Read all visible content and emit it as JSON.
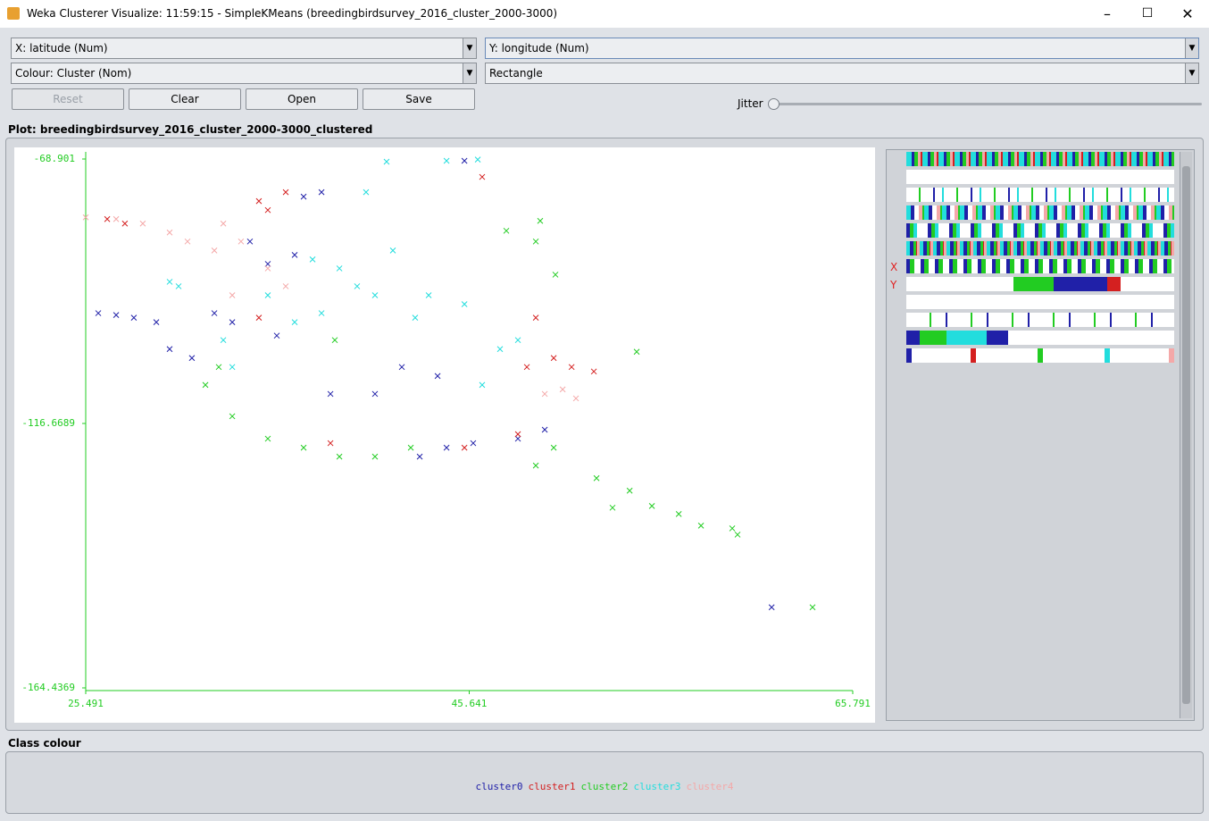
{
  "window": {
    "title": "Weka Clusterer Visualize: 11:59:15 - SimpleKMeans (breedingbirdsurvey_2016_cluster_2000-3000)"
  },
  "controls": {
    "x_select": "X: latitude (Num)",
    "y_select": "Y: longitude (Num)",
    "colour_select": "Colour: Cluster (Nom)",
    "shape_select": "Rectangle",
    "buttons": [
      "Reset",
      "Clear",
      "Open",
      "Save"
    ],
    "jitter": "Jitter"
  },
  "plot_label": "Plot: breedingbirdsurvey_2016_cluster_2000-3000_clustered",
  "attribute_panel": {
    "x_marker": "X",
    "y_marker": "Y"
  },
  "class_colour_label": "Class colour",
  "chart_data": {
    "type": "scatter",
    "xlim": [
      25.491,
      65.791
    ],
    "xticks": [
      25.491,
      45.641,
      65.791
    ],
    "ylim": [
      -164.4369,
      -68.901
    ],
    "yticks": [
      -164.4369,
      -116.6689,
      -68.901
    ],
    "axis_color": "#22cc22",
    "series": [
      {
        "name": "cluster0",
        "color": "#2020a8",
        "x": [
          26.15,
          27.09,
          28.02,
          29.2,
          29.9,
          31.07,
          32.25,
          33.19,
          35.06,
          36.47,
          35.53,
          38.35,
          42.1,
          43.98,
          44.45,
          45.85,
          48.2,
          49.61,
          61.53,
          36.94,
          37.88,
          34.12,
          40.69,
          43.04,
          45.39
        ],
        "values": [
          -96.75,
          -97.08,
          -97.56,
          -98.37,
          -103.23,
          -104.85,
          -96.75,
          -98.37,
          -87.85,
          -86.23,
          -100.8,
          -111.33,
          -106.47,
          -108.09,
          -121.04,
          -120.23,
          -119.42,
          -117.8,
          -149.87,
          -75.7,
          -74.89,
          -83.8,
          -111.33,
          -122.66,
          -69.23
        ]
      },
      {
        "name": "cluster1",
        "color": "#d42020",
        "x": [
          26.62,
          27.55,
          34.59,
          36.0,
          35.06,
          34.59,
          38.35,
          46.32,
          49.14,
          50.08,
          51.02,
          52.19,
          48.67,
          48.2,
          45.39
        ],
        "values": [
          -79.75,
          -80.56,
          -76.51,
          -74.89,
          -78.13,
          -97.56,
          -120.23,
          -72.14,
          -97.56,
          -104.85,
          -106.47,
          -107.28,
          -106.47,
          -118.61,
          -121.04
        ]
      },
      {
        "name": "cluster2",
        "color": "#22cc22",
        "x": [
          31.78,
          33.19,
          35.06,
          36.94,
          38.82,
          40.69,
          42.57,
          50.08,
          49.14,
          52.33,
          54.07,
          53.17,
          55.24,
          56.65,
          57.82,
          59.46,
          59.74,
          63.68,
          54.44,
          50.17,
          49.37,
          47.59,
          49.14,
          38.58,
          32.48
        ],
        "values": [
          -109.71,
          -115.37,
          -119.42,
          -121.04,
          -122.66,
          -122.66,
          -121.04,
          -121.04,
          -124.28,
          -126.55,
          -128.81,
          -131.89,
          -131.57,
          -133.03,
          -135.13,
          -135.62,
          -136.75,
          -149.87,
          -103.72,
          -89.79,
          -80.07,
          -81.86,
          -83.8,
          -101.61,
          -106.47
        ]
      },
      {
        "name": "cluster3",
        "color": "#22dddd",
        "x": [
          41.3,
          44.45,
          46.09,
          37.41,
          38.82,
          39.75,
          40.69,
          37.88,
          36.47,
          35.06,
          32.72,
          33.19,
          41.63,
          42.8,
          46.32,
          47.26,
          48.2,
          30.37,
          40.22,
          29.9,
          43.51,
          45.39
        ],
        "values": [
          -69.39,
          -69.23,
          -69.0,
          -87.04,
          -88.66,
          -91.89,
          -93.51,
          -96.75,
          -98.37,
          -93.51,
          -101.61,
          -106.47,
          -85.42,
          -97.56,
          -109.71,
          -103.23,
          -101.61,
          -91.89,
          -74.89,
          -91.08,
          -93.51,
          -95.13
        ]
      },
      {
        "name": "cluster4",
        "color": "#f4a8a8",
        "x": [
          25.49,
          27.09,
          28.49,
          29.9,
          30.84,
          32.25,
          33.65,
          32.72,
          35.06,
          36.0,
          50.55,
          51.25,
          49.61,
          33.19
        ],
        "values": [
          -79.43,
          -79.75,
          -80.56,
          -82.18,
          -83.8,
          -85.42,
          -83.8,
          -80.56,
          -88.66,
          -91.89,
          -110.52,
          -112.14,
          -111.33,
          -93.51
        ]
      }
    ]
  }
}
